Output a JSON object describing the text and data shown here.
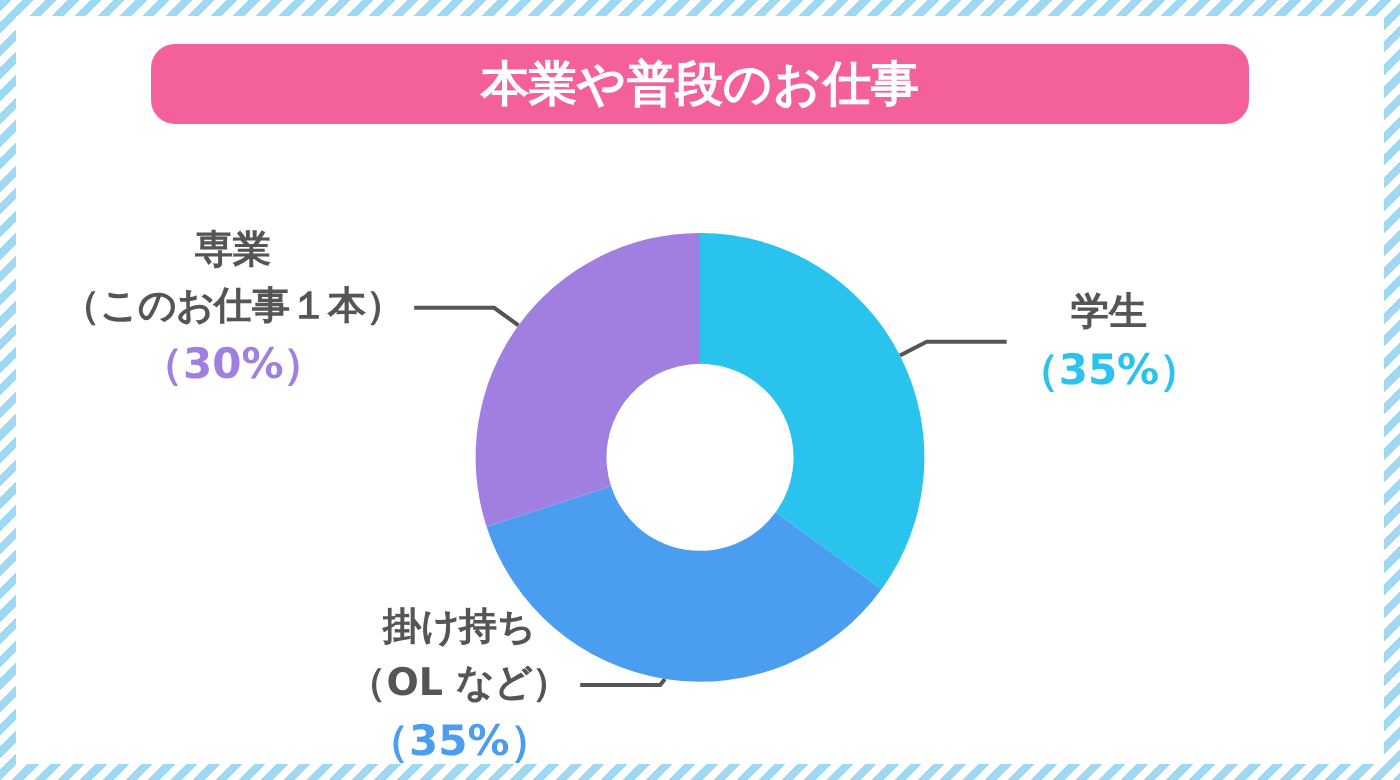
{
  "chart_data": {
    "type": "donut",
    "title": "本業や普段のお仕事",
    "categories": [
      "学生",
      "掛け持ち（OL など）",
      "専業（このお仕事１本）"
    ],
    "values": [
      35,
      35,
      30
    ],
    "colors": [
      "#2ac3ed",
      "#4b9def",
      "#a07fe0"
    ],
    "value_labels": [
      "（35%）",
      "（35%）",
      "（30%）"
    ]
  }
}
